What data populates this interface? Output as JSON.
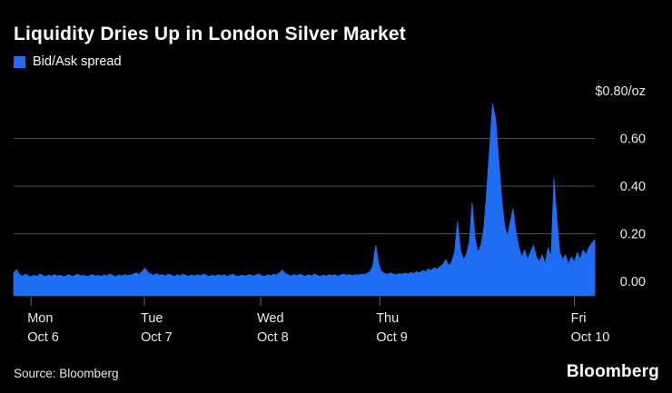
{
  "title": "Liquidity Dries Up in London Silver Market",
  "legend": {
    "label": "Bid/Ask spread",
    "color": "#1f6df2"
  },
  "source": "Source: Bloomberg",
  "brand": "Bloomberg",
  "chart_data": {
    "type": "area",
    "title": "Liquidity Dries Up in London Silver Market",
    "series_name": "Bid/Ask spread",
    "unit": "$/oz",
    "ylim": [
      -0.06,
      0.8
    ],
    "grid_values": [
      0.6,
      0.4,
      0.2,
      0.0
    ],
    "y_ticks": [
      {
        "value": 0.8,
        "label": "$0.80/oz"
      },
      {
        "value": 0.6,
        "label": "0.60"
      },
      {
        "value": 0.4,
        "label": "0.40"
      },
      {
        "value": 0.2,
        "label": "0.20"
      },
      {
        "value": 0.0,
        "label": "0.00"
      }
    ],
    "x_ticks": [
      {
        "frac": 0.03,
        "day": "Mon",
        "date": "Oct 6"
      },
      {
        "frac": 0.225,
        "day": "Tue",
        "date": "Oct 7"
      },
      {
        "frac": 0.425,
        "day": "Wed",
        "date": "Oct 8"
      },
      {
        "frac": 0.63,
        "day": "Thu",
        "date": "Oct 9"
      },
      {
        "frac": 0.965,
        "day": "Fri",
        "date": "Oct 10"
      }
    ],
    "values": [
      0.035,
      0.05,
      0.028,
      0.022,
      0.03,
      0.024,
      0.019,
      0.026,
      0.021,
      0.032,
      0.025,
      0.02,
      0.027,
      0.022,
      0.029,
      0.023,
      0.026,
      0.019,
      0.024,
      0.028,
      0.021,
      0.025,
      0.03,
      0.023,
      0.027,
      0.02,
      0.024,
      0.029,
      0.022,
      0.026,
      0.02,
      0.028,
      0.023,
      0.031,
      0.025,
      0.019,
      0.027,
      0.022,
      0.029,
      0.024,
      0.026,
      0.031,
      0.036,
      0.029,
      0.042,
      0.056,
      0.038,
      0.03,
      0.026,
      0.033,
      0.025,
      0.029,
      0.022,
      0.031,
      0.026,
      0.02,
      0.028,
      0.023,
      0.03,
      0.025,
      0.021,
      0.027,
      0.022,
      0.029,
      0.024,
      0.031,
      0.026,
      0.02,
      0.027,
      0.022,
      0.029,
      0.023,
      0.028,
      0.021,
      0.026,
      0.03,
      0.024,
      0.02,
      0.027,
      0.023,
      0.025,
      0.029,
      0.022,
      0.027,
      0.031,
      0.024,
      0.02,
      0.028,
      0.023,
      0.03,
      0.026,
      0.036,
      0.048,
      0.033,
      0.027,
      0.022,
      0.029,
      0.024,
      0.031,
      0.026,
      0.021,
      0.028,
      0.023,
      0.03,
      0.025,
      0.02,
      0.027,
      0.022,
      0.029,
      0.024,
      0.028,
      0.022,
      0.027,
      0.031,
      0.025,
      0.029,
      0.023,
      0.028,
      0.026,
      0.031,
      0.029,
      0.033,
      0.042,
      0.065,
      0.152,
      0.072,
      0.042,
      0.033,
      0.029,
      0.036,
      0.031,
      0.027,
      0.033,
      0.029,
      0.035,
      0.031,
      0.037,
      0.033,
      0.041,
      0.036,
      0.046,
      0.041,
      0.052,
      0.046,
      0.057,
      0.051,
      0.062,
      0.072,
      0.092,
      0.066,
      0.082,
      0.122,
      0.252,
      0.132,
      0.092,
      0.112,
      0.162,
      0.332,
      0.182,
      0.122,
      0.152,
      0.222,
      0.382,
      0.562,
      0.745,
      0.685,
      0.525,
      0.365,
      0.245,
      0.185,
      0.245,
      0.305,
      0.205,
      0.142,
      0.102,
      0.132,
      0.092,
      0.122,
      0.152,
      0.102,
      0.082,
      0.112,
      0.072,
      0.142,
      0.102,
      0.432,
      0.262,
      0.122,
      0.092,
      0.112,
      0.072,
      0.102,
      0.082,
      0.122,
      0.092,
      0.132,
      0.112,
      0.142,
      0.162,
      0.175
    ],
    "legend_position": "top-left",
    "grid": "horizontal",
    "colors": {
      "area": "#1f6df2",
      "grid": "#4f4f4f",
      "axis_text": "#e9e9e9",
      "background": "#000000"
    }
  }
}
